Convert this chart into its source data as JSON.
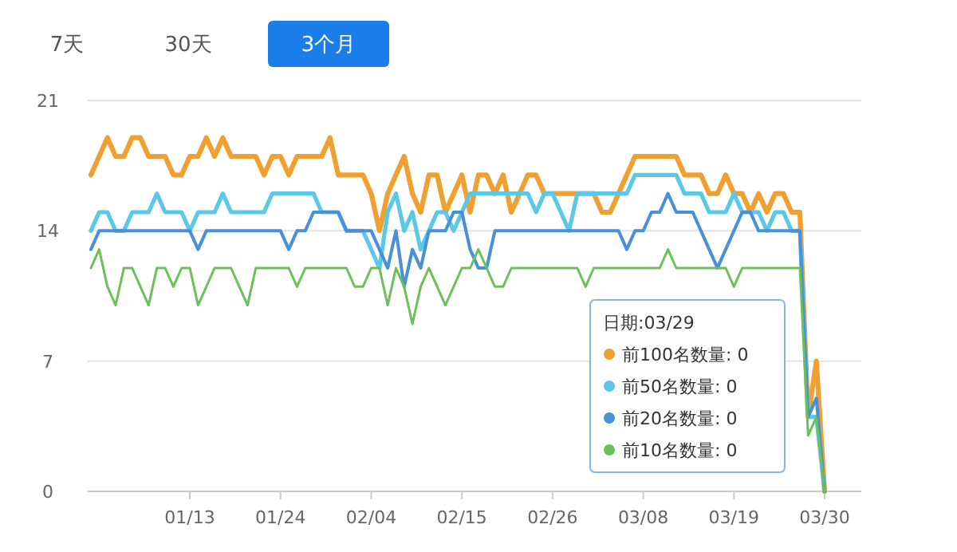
{
  "chart_data": {
    "type": "line",
    "annotations": [
      "7天",
      "30天",
      "3个月"
    ],
    "legend_title": "日期:03/29",
    "categories": [
      null,
      null,
      null,
      null,
      null,
      null,
      null,
      null,
      null,
      null,
      null,
      null,
      "01/13",
      null,
      null,
      null,
      null,
      null,
      null,
      null,
      null,
      null,
      null,
      "01/24",
      null,
      null,
      null,
      null,
      null,
      null,
      null,
      null,
      null,
      null,
      "02/04",
      null,
      null,
      null,
      null,
      null,
      null,
      null,
      null,
      null,
      null,
      "02/15",
      null,
      null,
      null,
      null,
      null,
      null,
      null,
      null,
      null,
      null,
      "02/26",
      null,
      null,
      null,
      null,
      null,
      null,
      null,
      null,
      null,
      null,
      "03/08",
      null,
      null,
      null,
      null,
      null,
      null,
      null,
      null,
      null,
      null,
      "03/19",
      null,
      null,
      null,
      null,
      null,
      null,
      null,
      null,
      null,
      null,
      "03/30"
    ],
    "series": [
      {
        "name": "前100名数量: 0",
        "color": "#f0a030",
        "values": [
          17,
          18,
          19,
          18,
          18,
          19,
          19,
          18,
          18,
          18,
          17,
          17,
          18,
          18,
          19,
          18,
          19,
          18,
          18,
          18,
          18,
          17,
          18,
          18,
          17,
          18,
          18,
          18,
          18,
          19,
          17,
          17,
          17,
          17,
          16,
          14,
          16,
          17,
          18,
          16,
          15,
          17,
          17,
          15,
          16,
          17,
          15,
          17,
          17,
          16,
          17,
          15,
          16,
          17,
          17,
          16,
          16,
          16,
          16,
          16,
          16,
          16,
          15,
          15,
          16,
          17,
          18,
          18,
          18,
          18,
          18,
          18,
          17,
          17,
          17,
          16,
          16,
          17,
          16,
          16,
          15,
          16,
          15,
          16,
          16,
          15,
          15,
          4,
          7,
          0
        ]
      },
      {
        "name": "前50名数量: 0",
        "color": "#5bc8e8",
        "values": [
          14,
          15,
          15,
          14,
          14,
          15,
          15,
          15,
          16,
          15,
          15,
          15,
          14,
          15,
          15,
          15,
          16,
          15,
          15,
          15,
          15,
          15,
          16,
          16,
          16,
          16,
          16,
          16,
          15,
          15,
          15,
          14,
          14,
          14,
          13,
          12,
          15,
          16,
          14,
          15,
          13,
          14,
          15,
          15,
          14,
          15,
          16,
          16,
          16,
          16,
          16,
          16,
          16,
          16,
          15,
          16,
          16,
          15,
          14,
          16,
          16,
          16,
          16,
          16,
          16,
          16,
          17,
          17,
          17,
          17,
          17,
          17,
          16,
          16,
          16,
          15,
          15,
          15,
          16,
          15,
          15,
          15,
          14,
          15,
          15,
          14,
          14,
          4,
          4,
          0
        ]
      },
      {
        "name": "前20名数量: 0",
        "color": "#4a90d9",
        "values": [
          13,
          14,
          14,
          14,
          14,
          14,
          14,
          14,
          14,
          14,
          14,
          14,
          14,
          13,
          14,
          14,
          14,
          14,
          14,
          14,
          14,
          14,
          14,
          14,
          13,
          14,
          14,
          15,
          15,
          15,
          15,
          14,
          14,
          14,
          14,
          13,
          12,
          14,
          11,
          13,
          12,
          14,
          14,
          14,
          15,
          15,
          13,
          12,
          12,
          14,
          14,
          14,
          14,
          14,
          14,
          14,
          14,
          14,
          14,
          14,
          14,
          14,
          14,
          14,
          14,
          13,
          14,
          14,
          15,
          15,
          16,
          15,
          15,
          15,
          14,
          13,
          12,
          13,
          14,
          15,
          15,
          14,
          14,
          14,
          14,
          14,
          14,
          4,
          5,
          0
        ]
      },
      {
        "name": "前10名数量: 0",
        "color": "#6cc05a",
        "values": [
          12,
          13,
          11,
          10,
          12,
          12,
          11,
          10,
          12,
          12,
          11,
          12,
          12,
          10,
          11,
          12,
          12,
          12,
          11,
          10,
          12,
          12,
          12,
          12,
          12,
          11,
          12,
          12,
          12,
          12,
          12,
          12,
          11,
          11,
          12,
          12,
          10,
          12,
          11,
          9,
          11,
          12,
          11,
          10,
          11,
          12,
          12,
          13,
          12,
          11,
          11,
          12,
          12,
          12,
          12,
          12,
          12,
          12,
          12,
          12,
          11,
          12,
          12,
          12,
          12,
          12,
          12,
          12,
          12,
          12,
          13,
          12,
          12,
          12,
          12,
          12,
          12,
          12,
          11,
          12,
          12,
          12,
          12,
          12,
          12,
          12,
          12,
          3,
          4,
          0
        ]
      }
    ],
    "ylim": [
      0,
      21
    ],
    "yticks": [
      0,
      7,
      14,
      21
    ],
    "grid": "y",
    "legend": "bottom right"
  }
}
